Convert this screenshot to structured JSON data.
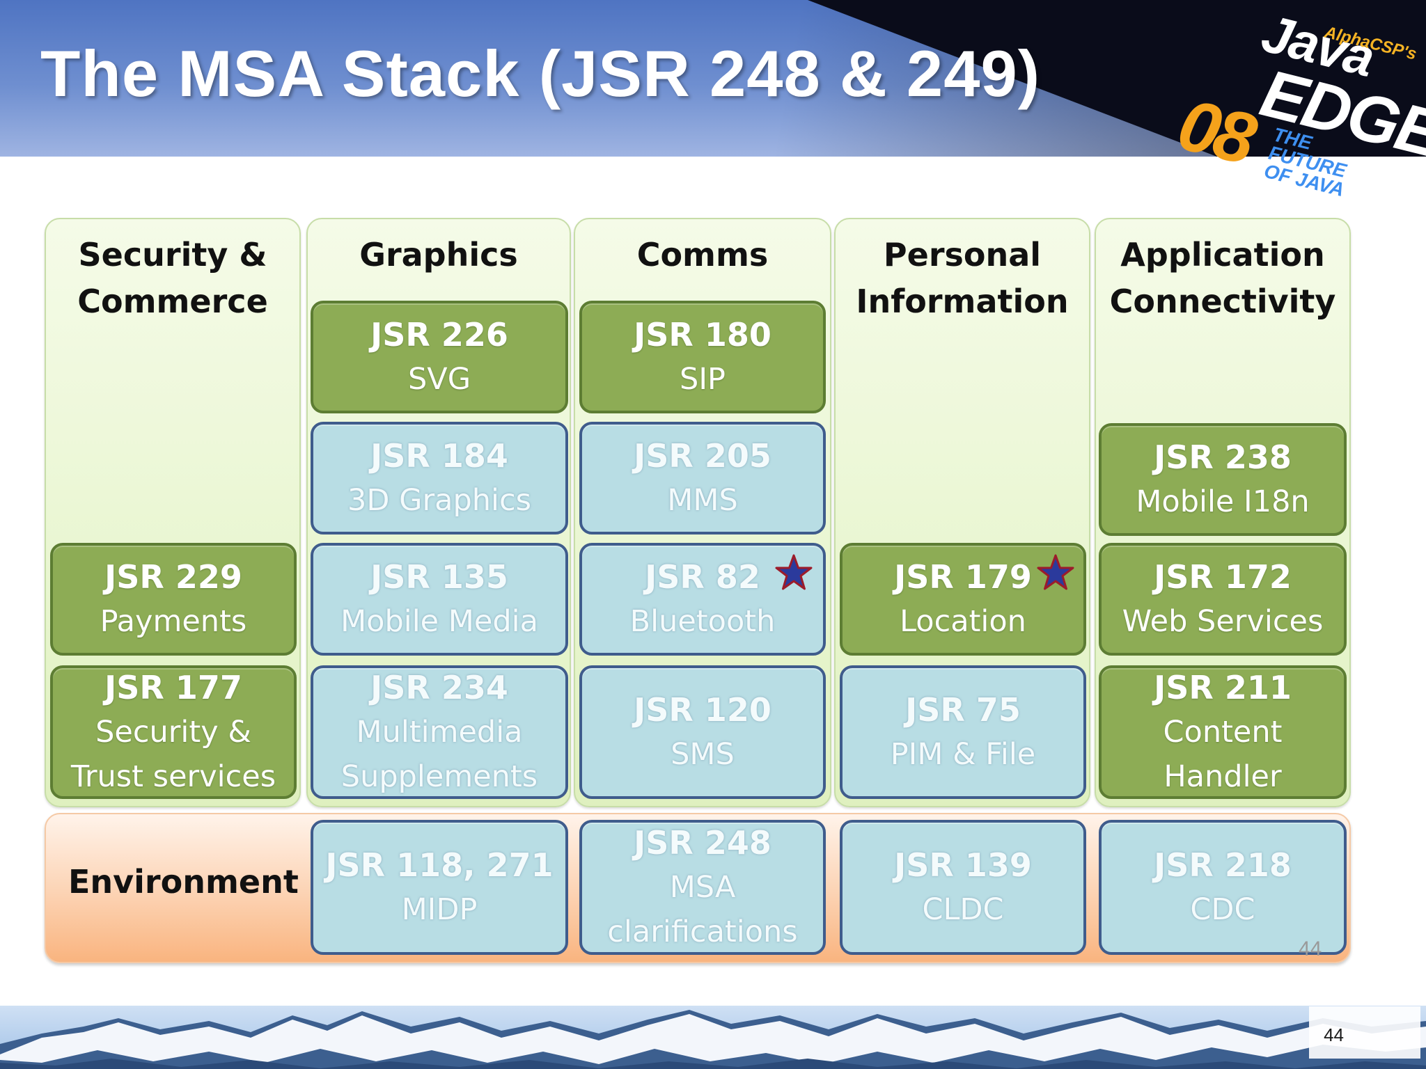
{
  "slide": {
    "title": "The MSA Stack (JSR 248 & 249)",
    "page_number": "44",
    "page_number_ghost": "44"
  },
  "logo": {
    "alpha": "AlphaCSP's",
    "java": "Java",
    "edge": "EDGE",
    "year": "08",
    "tagline": "THE FUTURE OF JAVA"
  },
  "columns": [
    {
      "title": "Security &\nCommerce",
      "boxes": [
        {
          "jsr": "JSR 229",
          "name": "Payments",
          "color": "green"
        },
        {
          "jsr": "JSR 177",
          "name": "Security &\nTrust services",
          "color": "green"
        }
      ]
    },
    {
      "title": "Graphics",
      "boxes": [
        {
          "jsr": "JSR 226",
          "name": "SVG",
          "color": "green"
        },
        {
          "jsr": "JSR 184",
          "name": "3D Graphics",
          "color": "blue"
        },
        {
          "jsr": "JSR 135",
          "name": "Mobile Media",
          "color": "blue"
        },
        {
          "jsr": "JSR 234",
          "name": "Multimedia\nSupplements",
          "color": "blue"
        }
      ]
    },
    {
      "title": "Comms",
      "boxes": [
        {
          "jsr": "JSR 180",
          "name": "SIP",
          "color": "green"
        },
        {
          "jsr": "JSR 205",
          "name": "MMS",
          "color": "blue"
        },
        {
          "jsr": "JSR 82",
          "name": "Bluetooth",
          "color": "blue",
          "starred": true
        },
        {
          "jsr": "JSR 120",
          "name": "SMS",
          "color": "blue"
        }
      ]
    },
    {
      "title": "Personal\nInformation",
      "boxes": [
        {
          "jsr": "JSR 179",
          "name": "Location",
          "color": "green",
          "starred": true
        },
        {
          "jsr": "JSR 75",
          "name": "PIM & File",
          "color": "blue"
        }
      ]
    },
    {
      "title": "Application\nConnectivity",
      "boxes": [
        {
          "jsr": "JSR 238",
          "name": "Mobile I18n",
          "color": "green"
        },
        {
          "jsr": "JSR 172",
          "name": "Web Services",
          "color": "green"
        },
        {
          "jsr": "JSR 211",
          "name": "Content\nHandler",
          "color": "green"
        }
      ]
    }
  ],
  "environment": {
    "label": "Environment",
    "boxes": [
      {
        "jsr": "JSR 118, 271",
        "name": "MIDP",
        "color": "blue"
      },
      {
        "jsr": "JSR 248",
        "name": "MSA\nclarifications",
        "color": "blue"
      },
      {
        "jsr": "JSR 139",
        "name": "CLDC",
        "color": "blue"
      },
      {
        "jsr": "JSR 218",
        "name": "CDC",
        "color": "blue"
      }
    ]
  },
  "colors": {
    "green_box": "#8dac55",
    "blue_box": "#b8dde4",
    "star_fill": "#2b3a9c",
    "star_outline": "#9c1c2a"
  },
  "icons": [
    "star-icon",
    "mountain-banner"
  ]
}
